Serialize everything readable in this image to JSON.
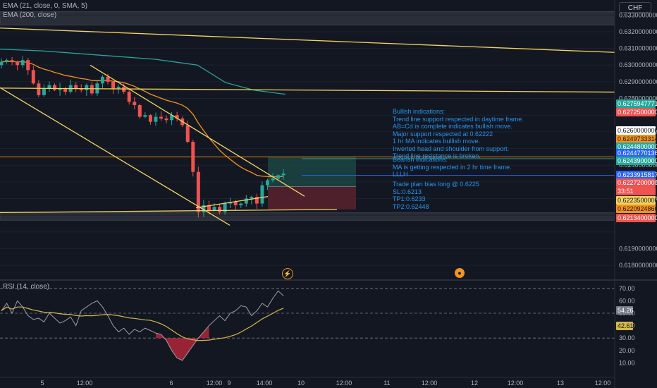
{
  "legend": {
    "ema21": "EMA (21, close, 0, SMA, 5)",
    "ema200": "EMA (200, close)",
    "rsi": "RSI (14, close)"
  },
  "currency": "CHF",
  "annotations": {
    "bullish": "Bullish indications:\nTrend line support respected in daytime frame.\nAB=Cd is complete indicates bullish move.\nMajor support respected at 0.62222\n1 hr MA indicates bullish move.\nInverted head and shoulder from support.\nTrend line resistance is broken.",
    "bearish": "Bearish indications:\nMA is getting respected in 2 hr time frame.\nLLLH",
    "plan": "Trade plan bias long @ 0.6225\nSL:0.6213\nTP1:0.6233\nTP2:0.62448"
  },
  "colors": {
    "background": "#131722",
    "up": "#26a69a",
    "down": "#ef5350",
    "ema21": "#f7931a",
    "ema200": "#26a69a",
    "trendline": "#f5d562",
    "rsi": "#9e9ea6",
    "rsi_ma": "#d4b94b",
    "zone": "#2a2e39",
    "tp_zone": "#1c4c47",
    "sl_zone": "#5c2330",
    "annotation": "#2196f3"
  },
  "chart_data": {
    "type": "candlestick",
    "symbol_quote": "CHF",
    "price_ylim": [
      0.6172,
      0.6339
    ],
    "price_ticks": [
      "0.63300000000",
      "0.63200000000",
      "0.63100000000",
      "0.63000000000",
      "0.62900000000",
      "0.62800000000",
      "0.62600000000",
      "0.62400000000",
      "0.62300000000",
      "0.62200000000",
      "0.61900000000",
      "0.61800000000"
    ],
    "x_ticks": [
      "5",
      "12:00",
      "6",
      "12:00",
      "9",
      "14:00",
      "10",
      "12:00",
      "11",
      "12:00",
      "12",
      "12:00",
      "13",
      "12:00"
    ],
    "candles_close_approx": [
      0.6302,
      0.6303,
      0.6302,
      0.63,
      0.6303,
      0.6297,
      0.6289,
      0.6282,
      0.6286,
      0.6288,
      0.6285,
      0.6286,
      0.6284,
      0.6288,
      0.6286,
      0.6285,
      0.6288,
      0.6283,
      0.6289,
      0.6293,
      0.629,
      0.6286,
      0.6287,
      0.6284,
      0.6278,
      0.6276,
      0.6269,
      0.627,
      0.6266,
      0.6269,
      0.6268,
      0.6267,
      0.627,
      0.6268,
      0.6264,
      0.6254,
      0.6236,
      0.6212,
      0.6216,
      0.6213,
      0.6215,
      0.6212,
      0.6217,
      0.6218,
      0.6216,
      0.6217,
      0.622,
      0.6221,
      0.6217,
      0.6228,
      0.6231,
      0.6232,
      0.6234,
      0.6235
    ],
    "indicators": [
      {
        "name": "EMA (21, close, 0, SMA, 5)",
        "color": "#f7931a"
      },
      {
        "name": "EMA (200, close)",
        "color": "#26a69a"
      }
    ],
    "horizontal_lines": [
      0.6245,
      0.62439,
      0.62339
    ],
    "price_labels": [
      {
        "text": "0.62759477711",
        "bg": "#26a69a",
        "fg": "#ffffff"
      },
      {
        "text": "0.62725000000",
        "bg": "#ef5350",
        "fg": "#ffffff"
      },
      {
        "text": "0.62600000000",
        "bg": "#ffffff",
        "fg": "#131722"
      },
      {
        "text": "0.62497333141",
        "bg": "#f7931a",
        "fg": "#131722"
      },
      {
        "text": "0.62448000000",
        "bg": "#26a69a",
        "fg": "#ffffff"
      },
      {
        "text": "0.62447701366",
        "bg": "#2962ff",
        "fg": "#ffffff"
      },
      {
        "text": "0.62439000000",
        "bg": "#26a69a",
        "fg": "#ffffff"
      },
      {
        "text": "0.62339158174",
        "bg": "#2962ff",
        "fg": "#ffffff"
      },
      {
        "text": "0.62272000000",
        "bg": "#ef5350",
        "fg": "#ffffff"
      },
      {
        "text": "33:51",
        "bg": "#ef5350",
        "fg": "#ffffff"
      },
      {
        "text": "0.62235000000",
        "bg": "#f5d562",
        "fg": "#131722"
      },
      {
        "text": "0.62209248604",
        "bg": "#f7931a",
        "fg": "#131722"
      },
      {
        "text": "0.62134000000",
        "bg": "#ef5350",
        "fg": "#ffffff"
      }
    ],
    "rsi": {
      "ylim": [
        0,
        75
      ],
      "ticks": [
        "70.00",
        "60.00",
        "50.00",
        "40.00",
        "30.00",
        "20.00",
        "10.00"
      ],
      "levels": [
        70,
        50,
        30
      ],
      "value": "54.26",
      "ma_value": "42.61"
    }
  }
}
